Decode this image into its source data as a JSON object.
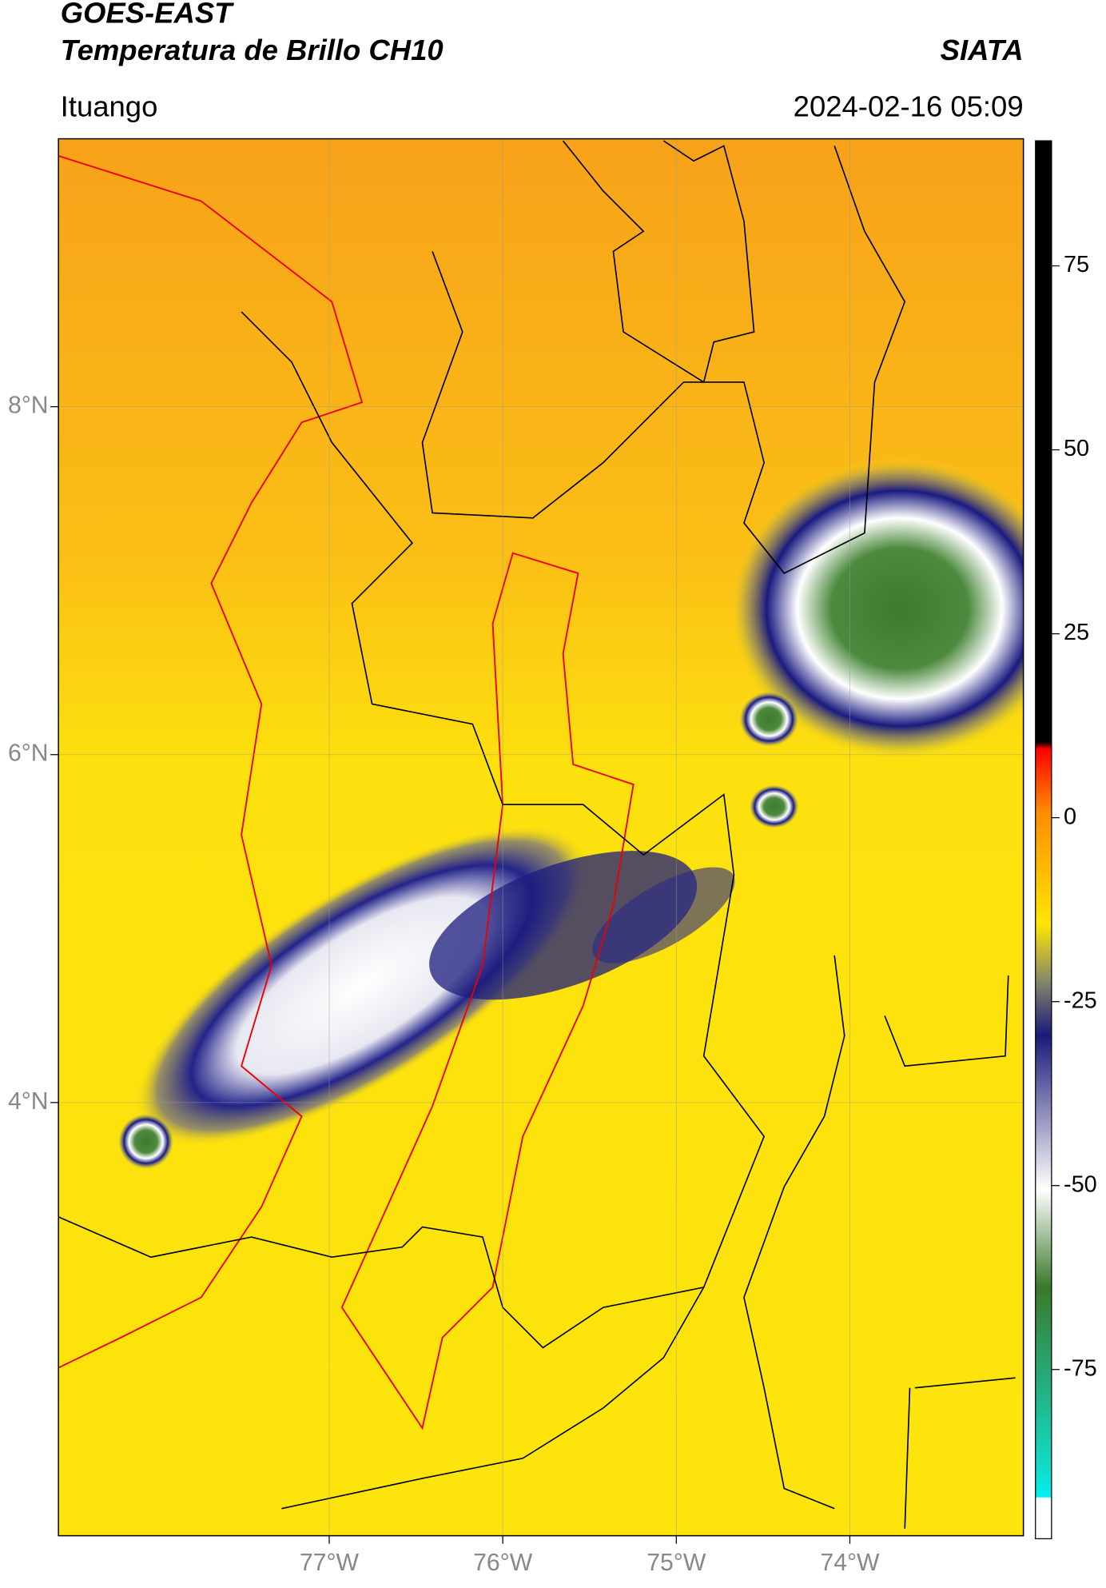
{
  "header": {
    "title": "GOES-EAST",
    "subtitle": "Temperatura de Brillo CH10",
    "org": "SIATA",
    "location": "Ituango",
    "datetime": "2024-02-16 05:09"
  },
  "map": {
    "xlim": [
      -78.56,
      -73.0
    ],
    "ylim": [
      1.51,
      9.54
    ],
    "xticks": [
      {
        "value": -77,
        "label": "77°W"
      },
      {
        "value": -76,
        "label": "76°W"
      },
      {
        "value": -75,
        "label": "75°W"
      },
      {
        "value": -74,
        "label": "74°W"
      }
    ],
    "yticks": [
      {
        "value": 8,
        "label": "8°N"
      },
      {
        "value": 6,
        "label": "6°N"
      },
      {
        "value": 4,
        "label": "4°N"
      }
    ]
  },
  "colorbar": {
    "lim": [
      -98,
      92
    ],
    "ticks": [
      75,
      50,
      25,
      0,
      -25,
      -50,
      -75
    ]
  }
}
